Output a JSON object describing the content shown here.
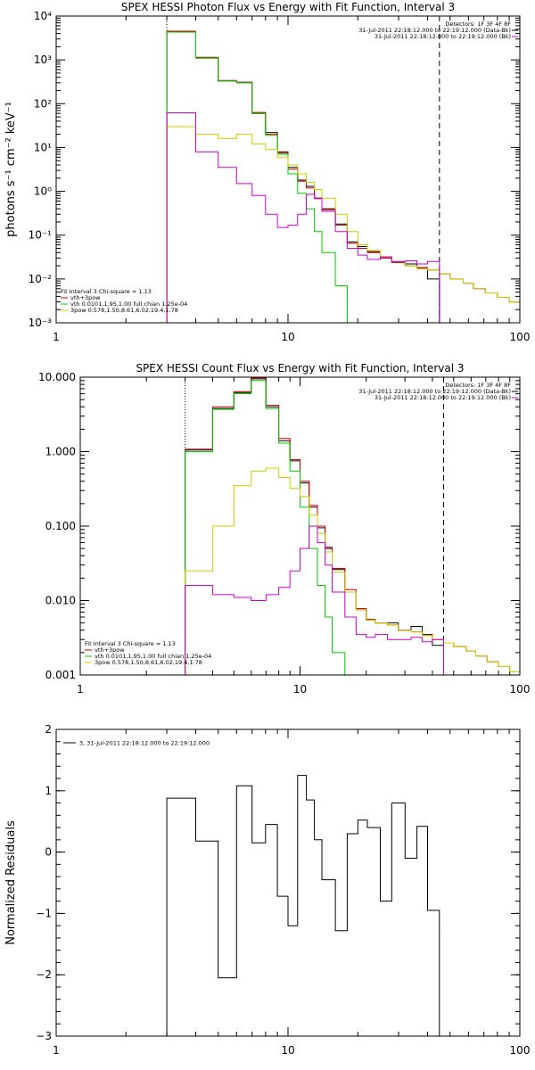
{
  "chart_data": [
    {
      "type": "line",
      "panel": "photon",
      "title": "SPEX HESSI Photon Flux vs Energy with Fit Function, Interval 3",
      "ylabel": "photons s⁻¹ cm⁻² keV⁻¹",
      "xlabel": "",
      "xscale": "log",
      "yscale": "log",
      "xlim": [
        1,
        100
      ],
      "ylim": [
        0.001,
        10000
      ],
      "xticks": [
        {
          "v": 1,
          "label": "1"
        },
        {
          "v": 10,
          "label": "10"
        },
        {
          "v": 100,
          "label": "100"
        }
      ],
      "yticks": [
        {
          "v": 0.001,
          "label": "10⁻³"
        },
        {
          "v": 0.01,
          "label": "10⁻²"
        },
        {
          "v": 0.1,
          "label": "10⁻¹"
        },
        {
          "v": 1,
          "label": "10⁰"
        },
        {
          "v": 10,
          "label": "10¹"
        },
        {
          "v": 100,
          "label": "10²"
        },
        {
          "v": 1000,
          "label": "10³"
        },
        {
          "v": 10000,
          "label": "10⁴"
        }
      ],
      "vlines": [
        {
          "x": 3,
          "style": "dotted"
        },
        {
          "x": 45,
          "style": "dashed"
        }
      ],
      "legend_top": [
        "Detectors: 1F 3F 4F 8F",
        "31-Jul-2011 22:18:12.000 to 22:19:12.000 (Data-Bk)",
        "31-Jul-2011 22:18:12.000 to 22:19:12.000 (Bk)"
      ],
      "legend_top_colors": [
        "",
        "#000000",
        "#cc00cc"
      ],
      "legend_bottom": [
        "Fit Interval 3   Chi-square = 1.13",
        "vth+3pow",
        "vth 0.0101,1.95,1.00  full chian 1.25e-04",
        "3pow 0.578,1.50,8.61,6.02,19.4,1.78"
      ],
      "legend_bottom_colors": [
        "",
        "#cc0000",
        "#00cc00",
        "#cccc00"
      ],
      "edges": [
        3,
        4,
        5,
        6,
        7,
        8,
        9,
        10,
        11,
        12,
        13,
        14,
        16,
        18,
        20,
        22,
        25,
        28,
        32,
        36,
        40,
        45,
        50,
        57,
        63,
        71,
        80,
        90,
        100
      ],
      "series": [
        {
          "name": "Data-Bk",
          "color": "#000000",
          "values": [
            4400,
            1100,
            330,
            300,
            60,
            22,
            8,
            3.5,
            1.8,
            1.3,
            0.7,
            0.4,
            0.18,
            0.07,
            0.055,
            0.042,
            0.03,
            0.024,
            0.022,
            0.018,
            0.01
          ]
        },
        {
          "name": "vth+3pow",
          "color": "#cc0000",
          "values": [
            4500,
            1150,
            340,
            310,
            63,
            20,
            7.5,
            3.2,
            1.7,
            1.2,
            0.68,
            0.38,
            0.17,
            0.065,
            0.05,
            0.04,
            0.03,
            0.024,
            0.02,
            0.018,
            0.016,
            0.013,
            0.01,
            0.008,
            0.006,
            0.0048,
            0.0038,
            0.003
          ]
        },
        {
          "name": "vth",
          "color": "#00cc00",
          "values": [
            4300,
            1100,
            330,
            300,
            60,
            19,
            7,
            2.5,
            0.9,
            0.4,
            0.12,
            0.04,
            0.007,
            0.0009
          ]
        },
        {
          "name": "3pow",
          "color": "#cccc00",
          "values": [
            30,
            20,
            16,
            20,
            12,
            9,
            6,
            4,
            2.5,
            1.6,
            1.1,
            0.7,
            0.3,
            0.12,
            0.06,
            0.045,
            0.032,
            0.025,
            0.02,
            0.017,
            0.016,
            0.013,
            0.01,
            0.008,
            0.006,
            0.0048,
            0.0038,
            0.003
          ]
        },
        {
          "name": "Bk",
          "color": "#cc00cc",
          "values": [
            62,
            8,
            3.5,
            1.5,
            0.8,
            0.3,
            0.15,
            0.17,
            0.3,
            0.85,
            0.7,
            0.35,
            0.12,
            0.05,
            0.035,
            0.028,
            0.032,
            0.025,
            0.026,
            0.022,
            0.025
          ]
        }
      ]
    },
    {
      "type": "line",
      "panel": "count",
      "title": "SPEX HESSI Count Flux vs Energy with Fit Function, Interval 3",
      "ylabel": "",
      "xlabel": "",
      "xscale": "log",
      "yscale": "log",
      "xlim": [
        1,
        100
      ],
      "ylim": [
        0.001,
        10
      ],
      "xticks": [
        {
          "v": 1,
          "label": "1"
        },
        {
          "v": 10,
          "label": "10"
        },
        {
          "v": 100,
          "label": "100"
        }
      ],
      "yticks": [
        {
          "v": 0.001,
          "label": "0.001"
        },
        {
          "v": 0.01,
          "label": "0.010"
        },
        {
          "v": 0.1,
          "label": "0.100"
        },
        {
          "v": 1,
          "label": "1.000"
        },
        {
          "v": 10,
          "label": "10.000"
        }
      ],
      "vlines": [
        {
          "x": 3,
          "style": "dotted"
        },
        {
          "x": 45,
          "style": "dashed"
        }
      ],
      "legend_top": [
        "Detectors: 1F 3F 4F 8F",
        "31-Jul-2011 22:18:12.000 to 22:19:12.000 (Data-Bk)",
        "31-Jul-2011 22:18:12.000 to 22:19:12.000 (Bk)"
      ],
      "legend_top_colors": [
        "",
        "#000000",
        "#cc00cc"
      ],
      "legend_bottom": [
        "Fit Interval 3   Chi-square = 1.13",
        "vth+3pow",
        "vth 0.0101,1.95,1.00  full chian 1.25e-04",
        "3pow 0.578,1.50,8.61,6.02,19.4,1.78"
      ],
      "legend_bottom_colors": [
        "",
        "#cc0000",
        "#00cc00",
        "#cccc00"
      ],
      "edges": [
        3,
        4,
        5,
        6,
        7,
        8,
        9,
        10,
        11,
        12,
        13,
        14,
        16,
        18,
        20,
        22,
        25,
        28,
        32,
        36,
        40,
        45,
        50,
        57,
        63,
        71,
        80,
        90,
        100
      ],
      "series": [
        {
          "name": "Data-Bk",
          "color": "#000000",
          "values": [
            1.05,
            3.8,
            6.2,
            9.5,
            4.0,
            1.4,
            0.75,
            0.38,
            0.18,
            0.095,
            0.05,
            0.026,
            0.013,
            0.0075,
            0.0055,
            0.005,
            0.005,
            0.004,
            0.0045,
            0.0035,
            0.0025
          ]
        },
        {
          "name": "vth+3pow",
          "color": "#cc0000",
          "values": [
            1.08,
            4.0,
            6.4,
            9.8,
            4.2,
            1.5,
            0.78,
            0.4,
            0.19,
            0.1,
            0.052,
            0.027,
            0.014,
            0.0078,
            0.0056,
            0.005,
            0.0047,
            0.004,
            0.0038,
            0.0034,
            0.003,
            0.0027,
            0.0024,
            0.0021,
            0.0018,
            0.0015,
            0.0013,
            0.0011
          ]
        },
        {
          "name": "vth",
          "color": "#00cc00",
          "values": [
            1.0,
            3.7,
            6.0,
            9.0,
            3.8,
            1.3,
            0.55,
            0.18,
            0.05,
            0.016,
            0.006,
            0.002,
            0.0008
          ]
        },
        {
          "name": "3pow",
          "color": "#cccc00",
          "values": [
            0.025,
            0.1,
            0.35,
            0.55,
            0.6,
            0.45,
            0.32,
            0.25,
            0.14,
            0.08,
            0.045,
            0.024,
            0.013,
            0.0075,
            0.0055,
            0.005,
            0.0047,
            0.004,
            0.0038,
            0.0034,
            0.003,
            0.0027,
            0.0024,
            0.0021,
            0.0018,
            0.0015,
            0.0013,
            0.0011
          ]
        },
        {
          "name": "Bk",
          "color": "#cc00cc",
          "values": [
            0.016,
            0.012,
            0.011,
            0.01,
            0.012,
            0.015,
            0.025,
            0.05,
            0.1,
            0.06,
            0.03,
            0.013,
            0.006,
            0.0035,
            0.0032,
            0.0035,
            0.003,
            0.003,
            0.0032,
            0.0028,
            0.003
          ]
        }
      ]
    },
    {
      "type": "line",
      "panel": "residuals",
      "title": "",
      "ylabel": "Normalized Residuals",
      "xlabel": "",
      "xscale": "log",
      "yscale": "linear",
      "xlim": [
        1,
        100
      ],
      "ylim": [
        -3,
        2
      ],
      "xticks": [
        {
          "v": 1,
          "label": "1"
        },
        {
          "v": 10,
          "label": "10"
        },
        {
          "v": 100,
          "label": "100"
        }
      ],
      "yticks": [
        {
          "v": -3,
          "label": "−3"
        },
        {
          "v": -2,
          "label": "−2"
        },
        {
          "v": -1,
          "label": "−1"
        },
        {
          "v": 0,
          "label": "0"
        },
        {
          "v": 1,
          "label": "1"
        },
        {
          "v": 2,
          "label": "2"
        }
      ],
      "legend_top": [
        "3, 31-Jul-2011 22:18:12.000 to 22:19:12.000"
      ],
      "edges": [
        3,
        4,
        5,
        6,
        7,
        8,
        9,
        10,
        11,
        12,
        13,
        14,
        16,
        18,
        20,
        22,
        25,
        28,
        32,
        36,
        40,
        45
      ],
      "series": [
        {
          "name": "3, 31-Jul-2011 22:18:12.000 to 22:19:12.000",
          "color": "#000000",
          "values": [
            0.88,
            0.18,
            -2.05,
            1.08,
            0.15,
            0.45,
            -0.72,
            -1.2,
            1.25,
            0.85,
            0.2,
            -0.45,
            -1.28,
            0.3,
            0.52,
            0.4,
            -0.8,
            0.8,
            -0.1,
            0.42,
            -0.95
          ]
        }
      ]
    }
  ]
}
